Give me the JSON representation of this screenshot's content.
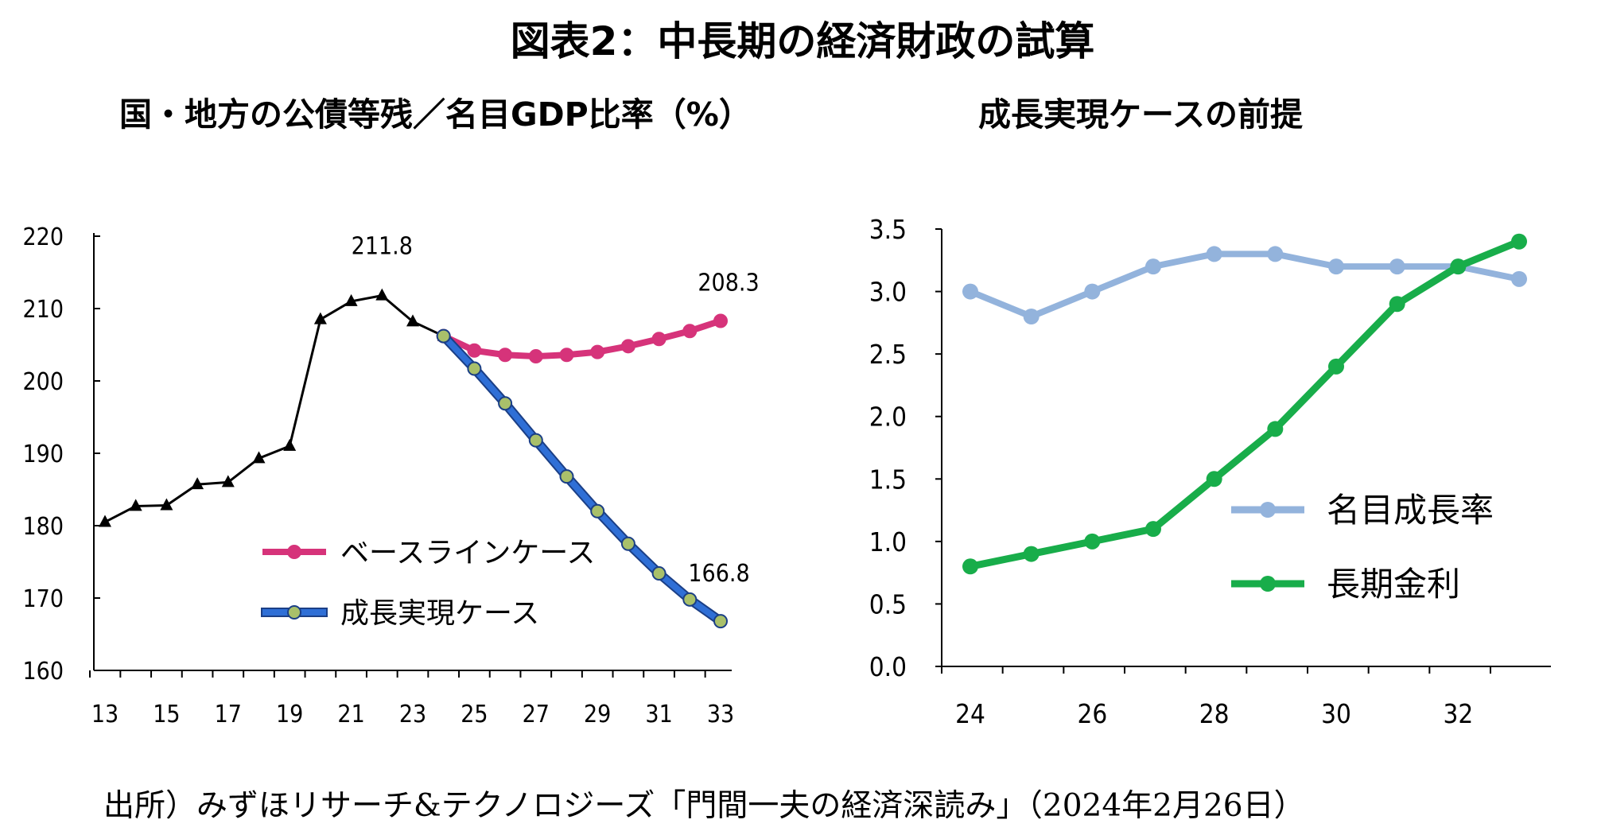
{
  "title": "図表2：中長期の経済財政の試算",
  "source": "出所）みずほリサーチ&テクノロジーズ「門間一夫の経済深読み」（2024年2月26日）",
  "chart_data": [
    {
      "type": "line",
      "subtitle": "国・地方の公債等残／名目GDP比率（%）",
      "ylim": [
        160,
        220
      ],
      "yticks": [
        160,
        170,
        180,
        190,
        200,
        210,
        220
      ],
      "xlim": [
        13,
        33
      ],
      "xticks": [
        13,
        15,
        17,
        19,
        21,
        23,
        25,
        27,
        29,
        31,
        33
      ],
      "grid": false,
      "legend": "lower-center",
      "series": [
        {
          "name": "",
          "color": "#000000",
          "marker": "triangle",
          "x": [
            13,
            14,
            15,
            16,
            17,
            18,
            19,
            20,
            21,
            22,
            23,
            24
          ],
          "y": [
            180.5,
            182.7,
            182.8,
            185.7,
            186.0,
            189.3,
            191.0,
            208.5,
            211.0,
            211.8,
            208.2,
            206.2
          ]
        },
        {
          "name": "ベースラインケース",
          "color": "#d6337a",
          "marker": "circle",
          "x": [
            24,
            25,
            26,
            27,
            28,
            29,
            30,
            31,
            32,
            33
          ],
          "y": [
            206.2,
            204.2,
            203.6,
            203.4,
            203.6,
            204.0,
            204.8,
            205.8,
            206.9,
            208.3
          ]
        },
        {
          "name": "成長実現ケース",
          "color": "#2f6fd6",
          "marker": "circle",
          "x": [
            24,
            25,
            26,
            27,
            28,
            29,
            30,
            31,
            32,
            33
          ],
          "y": [
            206.2,
            201.7,
            196.9,
            191.8,
            186.8,
            182.0,
            177.5,
            173.4,
            169.8,
            166.8
          ]
        }
      ],
      "annotations": [
        {
          "text": "211.8",
          "x": 22,
          "y": 211.8
        },
        {
          "text": "208.3",
          "x": 33,
          "y": 208.3
        },
        {
          "text": "166.8",
          "x": 33,
          "y": 166.8
        }
      ]
    },
    {
      "type": "line",
      "subtitle": "成長実現ケースの前提",
      "ylim": [
        0.0,
        3.5
      ],
      "yticks": [
        "0.0",
        "0.5",
        "1.0",
        "1.5",
        "2.0",
        "2.5",
        "3.0",
        "3.5"
      ],
      "xlim": [
        24,
        33
      ],
      "xticks": [
        24,
        26,
        28,
        30,
        32
      ],
      "grid": false,
      "legend": "right",
      "series": [
        {
          "name": "名目成長率",
          "color": "#93b3dc",
          "marker": "circle",
          "x": [
            24,
            25,
            26,
            27,
            28,
            29,
            30,
            31,
            32,
            33
          ],
          "y": [
            3.0,
            2.8,
            3.0,
            3.2,
            3.3,
            3.3,
            3.2,
            3.2,
            3.2,
            3.1
          ]
        },
        {
          "name": "長期金利",
          "color": "#18ad4a",
          "marker": "circle",
          "x": [
            24,
            25,
            26,
            27,
            28,
            29,
            30,
            31,
            32,
            33
          ],
          "y": [
            0.8,
            0.9,
            1.0,
            1.1,
            1.5,
            1.9,
            2.4,
            2.9,
            3.2,
            3.4
          ]
        }
      ]
    }
  ]
}
